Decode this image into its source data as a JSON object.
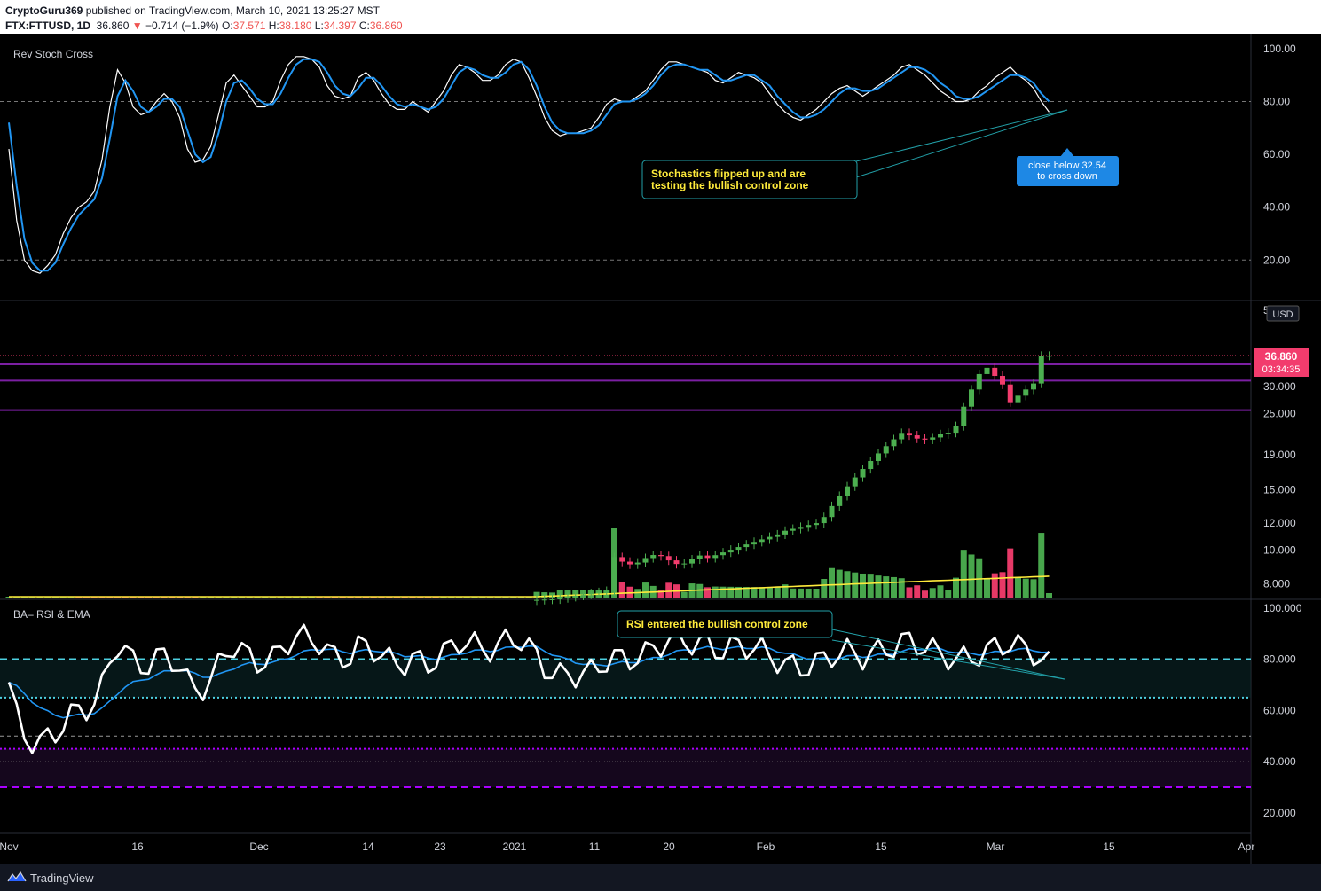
{
  "header": {
    "author": "CryptoGuru369",
    "published_text": " published on TradingView.com, March 10, 2021 13:25:27 MST",
    "symbol": "FTX:FTTUSD, 1D",
    "last": "36.860",
    "arrow": "▼",
    "change": "−0.714 (−1.9%)",
    "open_label": "O:",
    "open": "37.571",
    "high_label": "H:",
    "high": "38.180",
    "low_label": "L:",
    "low": "34.397",
    "close_label": "C:",
    "close": "36.860"
  },
  "colors": {
    "background": "#000000",
    "up": "#4caf50",
    "down": "#f23c6d",
    "stoch_k": "#ffffff",
    "stoch_d": "#2196f3",
    "volume_ma": "#ffeb3b",
    "support_lines": "#7b1fa2",
    "rsi_line": "#ffffff",
    "rsi_ema": "#2196f3",
    "rsi_upper_band": "#4dd0e1",
    "rsi_lower_band": "#aa00ff",
    "annotation_text": "#ffeb3b",
    "annotation_border": "#22a0a8",
    "callout_fill": "#1e88e5"
  },
  "chart_data": [
    {
      "type": "line",
      "title": "Rev Stoch Cross",
      "ylim": [
        5,
        105
      ],
      "yticks": [
        "100.00",
        "80.00",
        "60.00",
        "40.00",
        "20.00"
      ],
      "ytick_values": [
        100,
        80,
        60,
        40,
        20
      ],
      "levels": [
        80,
        20
      ],
      "annotations": [
        "Stochastics flipped up and are\ntesting the bullish control zone",
        "close below 32.54\nto cross down"
      ],
      "x": [
        0,
        1,
        2,
        3,
        4,
        5,
        6,
        7,
        8,
        9,
        10,
        11,
        12,
        13,
        14,
        15,
        16,
        17,
        18,
        19,
        20,
        21,
        22,
        23,
        24,
        25,
        26,
        27,
        28,
        29,
        30,
        31,
        32,
        33,
        34,
        35,
        36,
        37,
        38,
        39,
        40,
        41,
        42,
        43,
        44,
        45,
        46,
        47,
        48,
        49,
        50,
        51,
        52,
        53,
        54,
        55,
        56,
        57,
        58,
        59,
        60,
        61,
        62,
        63,
        64,
        65,
        66,
        67,
        68,
        69,
        70,
        71,
        72,
        73,
        74,
        75,
        76,
        77,
        78,
        79,
        80,
        81,
        82,
        83,
        84,
        85,
        86,
        87,
        88,
        89,
        90,
        91,
        92,
        93,
        94,
        95,
        96,
        97,
        98,
        99,
        100,
        101,
        102,
        103,
        104,
        105,
        106,
        107,
        108,
        109,
        110,
        111,
        112,
        113,
        114,
        115,
        116,
        117,
        118,
        119,
        120,
        121,
        122,
        123,
        124,
        125,
        126,
        127,
        128,
        129,
        130,
        131,
        132,
        133,
        134
      ],
      "series": [
        {
          "values": [
            62,
            35,
            20,
            16,
            15,
            18,
            22,
            30,
            36,
            40,
            42,
            46,
            58,
            78,
            92,
            87,
            78,
            75,
            76,
            80,
            83,
            80,
            74,
            62,
            57,
            58,
            63,
            75,
            87,
            90,
            86,
            82,
            78,
            78,
            80,
            88,
            94,
            97,
            97,
            96,
            93,
            86,
            82,
            81,
            82,
            89,
            91,
            88,
            83,
            79,
            77,
            77,
            80,
            78,
            76,
            80,
            84,
            90,
            94,
            93,
            91,
            88,
            88,
            90,
            94,
            96,
            95,
            89,
            82,
            74,
            69,
            67,
            68,
            68,
            69,
            70,
            74,
            79,
            81,
            80,
            80,
            82,
            84,
            88,
            92,
            95,
            95,
            94,
            93,
            92,
            91,
            88,
            87,
            89,
            91,
            90,
            89,
            87,
            83,
            79,
            76,
            74,
            73,
            75,
            77,
            80,
            83,
            85,
            86,
            84,
            82,
            84,
            86,
            88,
            90,
            93,
            94,
            92,
            90,
            87,
            84,
            82,
            80,
            80,
            81,
            84,
            86,
            89,
            91,
            93,
            90,
            88,
            85,
            80,
            76
          ]
        },
        {
          "values": [
            72,
            48,
            28,
            19,
            16,
            16,
            19,
            26,
            32,
            37,
            40,
            43,
            51,
            66,
            82,
            88,
            84,
            78,
            76,
            78,
            81,
            81,
            78,
            69,
            60,
            57,
            59,
            68,
            80,
            87,
            88,
            85,
            81,
            79,
            79,
            83,
            89,
            94,
            96,
            96,
            95,
            91,
            86,
            83,
            82,
            85,
            89,
            89,
            86,
            82,
            79,
            78,
            79,
            78,
            77,
            78,
            81,
            86,
            91,
            93,
            92,
            90,
            89,
            89,
            91,
            94,
            95,
            92,
            86,
            78,
            72,
            69,
            68,
            68,
            68,
            69,
            71,
            75,
            79,
            80,
            80,
            81,
            83,
            86,
            90,
            93,
            94,
            94,
            93,
            92,
            92,
            90,
            88,
            88,
            89,
            90,
            90,
            88,
            86,
            82,
            79,
            76,
            74,
            74,
            75,
            77,
            80,
            83,
            85,
            85,
            84,
            84,
            85,
            87,
            89,
            91,
            93,
            93,
            92,
            90,
            87,
            85,
            82,
            81,
            81,
            82,
            84,
            86,
            88,
            90,
            90,
            89,
            87,
            83,
            80
          ]
        }
      ]
    },
    {
      "type": "candlestick",
      "scale": "log",
      "currency": "USD",
      "ylim": [
        7.2,
        50
      ],
      "yticks": [
        "50",
        "30.000",
        "25.000",
        "19.000",
        "15.000",
        "12.000",
        "10.000",
        "8.000"
      ],
      "ytick_values": [
        50,
        30,
        25,
        19,
        15,
        12,
        10,
        8
      ],
      "last_price": "36.860",
      "countdown": "03:34:35",
      "horizontal_levels": [
        34.8,
        31.2,
        25.6
      ],
      "xtick_labels": [
        "Nov",
        "16",
        "Dec",
        "14",
        "23",
        "2021",
        "11",
        "20",
        "Feb",
        "15",
        "Mar",
        "15",
        "Apr"
      ],
      "volume_ma_approx": [
        1,
        1,
        1,
        1,
        1,
        1,
        1,
        1,
        1,
        1,
        1,
        1,
        1,
        1,
        1,
        1,
        1,
        1,
        1,
        1,
        1,
        1,
        1,
        1,
        1,
        1,
        1,
        1,
        1,
        1,
        1,
        1,
        1,
        1,
        1,
        1,
        1,
        1,
        1,
        1,
        1,
        1,
        1,
        1,
        1,
        1,
        1,
        1,
        1,
        1,
        1,
        1,
        1,
        1,
        1,
        1,
        1,
        1,
        1,
        1,
        1,
        1,
        1,
        1,
        1,
        1,
        1,
        1,
        1,
        1,
        1,
        1,
        1,
        1,
        1,
        1,
        1,
        1,
        1,
        1,
        1,
        1,
        1,
        1,
        1,
        1,
        1,
        1,
        1,
        1,
        1,
        1,
        1,
        1,
        1,
        1,
        1,
        1,
        1,
        1,
        1,
        1,
        1,
        1,
        1,
        1,
        1,
        1,
        1,
        1,
        1,
        1,
        1,
        1,
        1,
        1,
        1,
        1,
        1,
        1,
        1,
        1,
        1,
        1,
        1,
        1,
        1,
        1,
        1,
        1,
        1,
        1,
        1,
        1,
        1
      ]
    },
    {
      "type": "line",
      "title": "BA– RSI & EMA",
      "ylim": [
        12,
        102
      ],
      "yticks": [
        "100.000",
        "80.000",
        "60.000",
        "40.000",
        "20.000"
      ],
      "ytick_values": [
        100,
        80,
        60,
        40,
        20
      ],
      "bands": {
        "upper": [
          65,
          80
        ],
        "lower": [
          30,
          45
        ],
        "mid": 50,
        "aux": 40
      },
      "annotation": "RSI entered the bullish control zone"
    }
  ],
  "footer": {
    "brand": "TradingView"
  }
}
